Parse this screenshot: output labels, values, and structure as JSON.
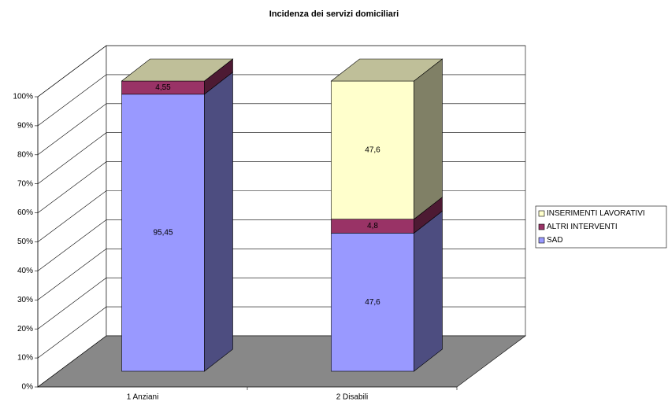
{
  "chart_data": {
    "type": "bar3d_stacked",
    "title": "Incidenza dei servizi domiciliari",
    "categories": [
      "1 Anziani",
      "2 Disabili"
    ],
    "series": [
      {
        "name": "SAD",
        "color": "#9999ff",
        "values": [
          95.45,
          47.6
        ],
        "value_labels": [
          "95,45",
          "47,6"
        ]
      },
      {
        "name": "ALTRI INTERVENTI",
        "color": "#993366",
        "values": [
          4.55,
          4.8
        ],
        "value_labels": [
          "4,55",
          "4,8"
        ]
      },
      {
        "name": "INSERIMENTI LAVORATIVI",
        "color": "#ffffcc",
        "values": [
          0,
          47.6
        ],
        "value_labels": [
          null,
          "47,6"
        ]
      }
    ],
    "ylim": [
      0,
      100
    ],
    "yticks": [
      {
        "value": 0,
        "label": "0%"
      },
      {
        "value": 10,
        "label": "10%"
      },
      {
        "value": 20,
        "label": "20%"
      },
      {
        "value": 30,
        "label": "30%"
      },
      {
        "value": 40,
        "label": "40%"
      },
      {
        "value": 50,
        "label": "50%"
      },
      {
        "value": 60,
        "label": "60%"
      },
      {
        "value": 70,
        "label": "70%"
      },
      {
        "value": 80,
        "label": "80%"
      },
      {
        "value": 90,
        "label": "90%"
      },
      {
        "value": 100,
        "label": "100%"
      }
    ],
    "grid": true,
    "legend": "right"
  }
}
